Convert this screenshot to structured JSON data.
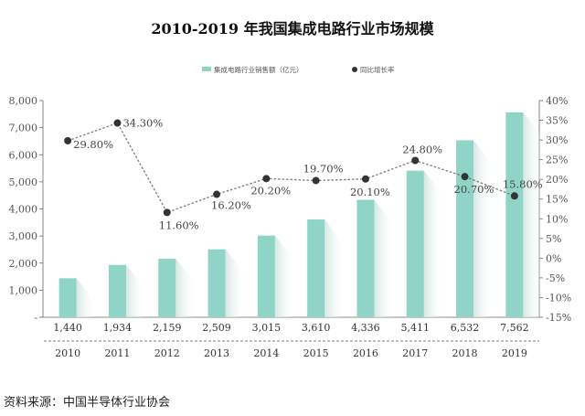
{
  "title": "2010-2019 年我国集成电路行业市场规模",
  "source": "资料来源：中国半导体行业协会",
  "colors": {
    "bar": "#8fd4c6",
    "bar_shadow": "#dbe9e6",
    "line": "#7a7a7a",
    "marker": "#333333",
    "table_rule": "#555555"
  },
  "chart_data": {
    "type": "bar",
    "categories": [
      "2010",
      "2011",
      "2012",
      "2013",
      "2014",
      "2015",
      "2016",
      "2017",
      "2018",
      "2019"
    ],
    "series": [
      {
        "name": "集成电路行业销售额（亿元）",
        "type": "bar",
        "axis": "left",
        "values": [
          1440,
          1934,
          2159,
          2509,
          3015,
          3610,
          4336,
          5411,
          6532,
          7562
        ]
      },
      {
        "name": "同比增长率",
        "type": "line",
        "axis": "right",
        "values": [
          29.8,
          34.3,
          11.6,
          16.2,
          20.2,
          19.7,
          20.1,
          24.8,
          20.7,
          15.8
        ]
      }
    ],
    "value_labels": [
      "1,440",
      "1,934",
      "2,159",
      "2,509",
      "3,015",
      "3,610",
      "4,336",
      "5,411",
      "6,532",
      "7,562"
    ],
    "rate_labels": [
      "29.80%",
      "34.30%",
      "11.60%",
      "16.20%",
      "20.20%",
      "19.70%",
      "20.10%",
      "24.80%",
      "20.70%",
      "15.80%"
    ],
    "y_left": {
      "lim": [
        0,
        8000
      ],
      "ticks": [
        "-",
        "1,000",
        "2,000",
        "3,000",
        "4,000",
        "5,000",
        "6,000",
        "7,000",
        "8,000"
      ]
    },
    "y_right": {
      "lim": [
        -15,
        40
      ],
      "ticks": [
        "-15%",
        "-10%",
        "-5%",
        "0%",
        "5%",
        "10%",
        "15%",
        "20%",
        "25%",
        "30%",
        "35%",
        "40%"
      ]
    },
    "legend_position": "top"
  }
}
